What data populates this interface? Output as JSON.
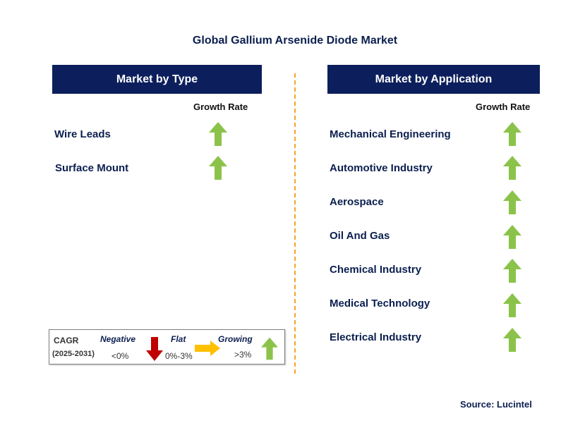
{
  "title": "Global Gallium Arsenide Diode Market",
  "left_panel": {
    "header": "Market by Type",
    "growth_label": "Growth Rate",
    "items": [
      {
        "label": "Wire Leads",
        "trend": "growing"
      },
      {
        "label": "Surface Mount",
        "trend": "growing"
      }
    ]
  },
  "right_panel": {
    "header": "Market by Application",
    "growth_label": "Growth Rate",
    "items": [
      {
        "label": "Mechanical Engineering",
        "trend": "growing"
      },
      {
        "label": "Automotive Industry",
        "trend": "growing"
      },
      {
        "label": "Aerospace",
        "trend": "growing"
      },
      {
        "label": "Oil And Gas",
        "trend": "growing"
      },
      {
        "label": "Chemical Industry",
        "trend": "growing"
      },
      {
        "label": "Medical Technology",
        "trend": "growing"
      },
      {
        "label": "Electrical Industry",
        "trend": "growing"
      }
    ]
  },
  "legend": {
    "cagr_label": "CAGR",
    "period": "(2025-2031)",
    "negative_label": "Negative",
    "negative_range": "<0%",
    "flat_label": "Flat",
    "flat_range": "0%-3%",
    "growing_label": "Growing",
    "growing_range": ">3%"
  },
  "source": "Source: Lucintel",
  "colors": {
    "header_bg": "#0c1f5c",
    "text": "#0b1f4f",
    "growing": "#8bc34a",
    "negative": "#c00000",
    "flat": "#ffc000",
    "divider": "#f5a623"
  },
  "icons": {
    "growing": "up-arrow-icon",
    "negative": "down-arrow-icon",
    "flat": "right-arrow-icon"
  }
}
